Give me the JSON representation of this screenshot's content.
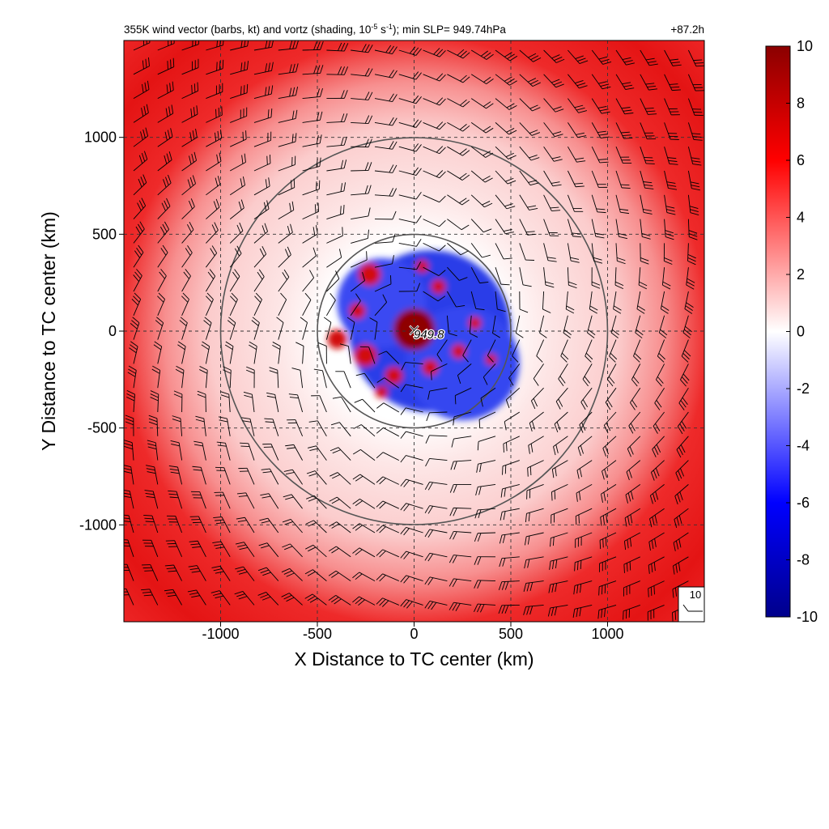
{
  "chart_data": {
    "type": "heatmap",
    "title_main": "355K wind vector (barbs, kt) and vortz (shading, 10",
    "title_exp1": "-5",
    "title_mid": " s",
    "title_exp2": "-1",
    "title_end": "); min SLP= 949.74hPa",
    "forecast_hour": "+87.2h",
    "xlabel": "X Distance to TC center (km)",
    "ylabel": "Y Distance to TC center (km)",
    "xlim": [
      -1500,
      1500
    ],
    "ylim": [
      -1500,
      1500
    ],
    "x_ticks": [
      -1000,
      -500,
      0,
      500,
      1000
    ],
    "y_ticks": [
      -1000,
      -500,
      0,
      500,
      1000
    ],
    "grid": true,
    "range_rings_km": [
      500,
      1000
    ],
    "center_marker": "×",
    "center_label": "949.8",
    "reference_barb_label": "10",
    "colorbar": {
      "min": -10,
      "max": 10,
      "ticks": [
        10,
        8,
        6,
        4,
        2,
        0,
        -2,
        -4,
        -6,
        -8,
        -10
      ],
      "colors": [
        "#00008b",
        "#0000ff",
        "#ffffff",
        "#ff0000",
        "#8b0000"
      ]
    }
  }
}
